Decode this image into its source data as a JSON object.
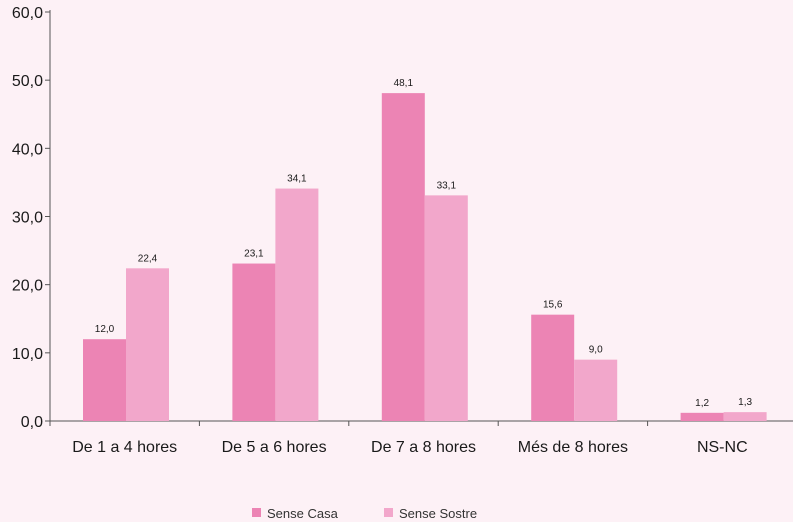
{
  "chart_data": {
    "type": "bar",
    "title": "",
    "xlabel": "",
    "ylabel": "",
    "categories": [
      "De 1 a 4 hores",
      "De 5 a 6 hores",
      "De 7 a 8 hores",
      "Més de 8 hores",
      "NS-NC"
    ],
    "series": [
      {
        "name": "Sense Casa",
        "color": "#ec84b4",
        "values": [
          12.0,
          23.1,
          48.1,
          15.6,
          1.2
        ],
        "labels": [
          "12,0",
          "23,1",
          "48,1",
          "15,6",
          "1,2"
        ]
      },
      {
        "name": "Sense Sostre",
        "color": "#f2a7cb",
        "values": [
          22.4,
          34.1,
          33.1,
          9.0,
          1.3
        ],
        "labels": [
          "22,4",
          "34,1",
          "33,1",
          "9,0",
          "1,3"
        ]
      }
    ],
    "ylim": [
      0,
      60
    ],
    "yticks": [
      0,
      10,
      20,
      30,
      40,
      50,
      60
    ],
    "ytick_labels": [
      "0,0",
      "10,0",
      "20,0",
      "30,0",
      "40,0",
      "50,0",
      "60,0"
    ],
    "grid": false,
    "legend_position": "bottom"
  },
  "colors": {
    "background": "#fdf1f6",
    "axis": "#555555"
  }
}
